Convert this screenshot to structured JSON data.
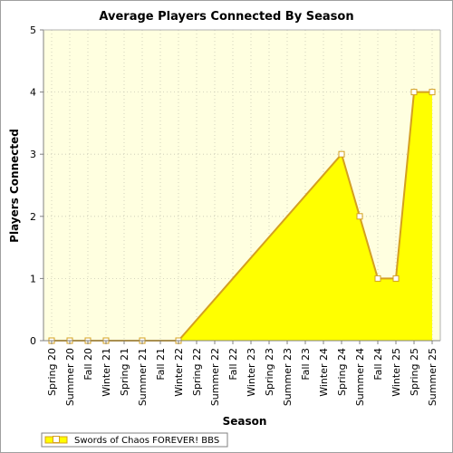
{
  "chart_data": {
    "type": "area",
    "title": "Average Players Connected By Season",
    "xlabel": "Season",
    "ylabel": "Players Connected",
    "ylim": [
      0,
      5
    ],
    "yticks": [
      0,
      1,
      2,
      3,
      4,
      5
    ],
    "grid": true,
    "legend_position": "bottom-left",
    "categories": [
      "Spring 20",
      "Summer 20",
      "Fall 20",
      "Winter 21",
      "Spring 21",
      "Summer 21",
      "Fall 21",
      "Winter 22",
      "Spring 22",
      "Summer 22",
      "Fall 22",
      "Winter 23",
      "Spring 23",
      "Summer 23",
      "Fall 23",
      "Winter 24",
      "Spring 24",
      "Summer 24",
      "Fall 24",
      "Winter 25",
      "Spring 25",
      "Summer 25"
    ],
    "series": [
      {
        "name": "Swords of Chaos FOREVER! BBS",
        "values": [
          0,
          0,
          0,
          0,
          null,
          0,
          null,
          0,
          null,
          null,
          null,
          null,
          null,
          null,
          null,
          null,
          3,
          2,
          1,
          1,
          4,
          4
        ],
        "fill_color": "#ffff00",
        "line_color": "#d4a020"
      }
    ],
    "plot_background": "#ffffe0"
  }
}
